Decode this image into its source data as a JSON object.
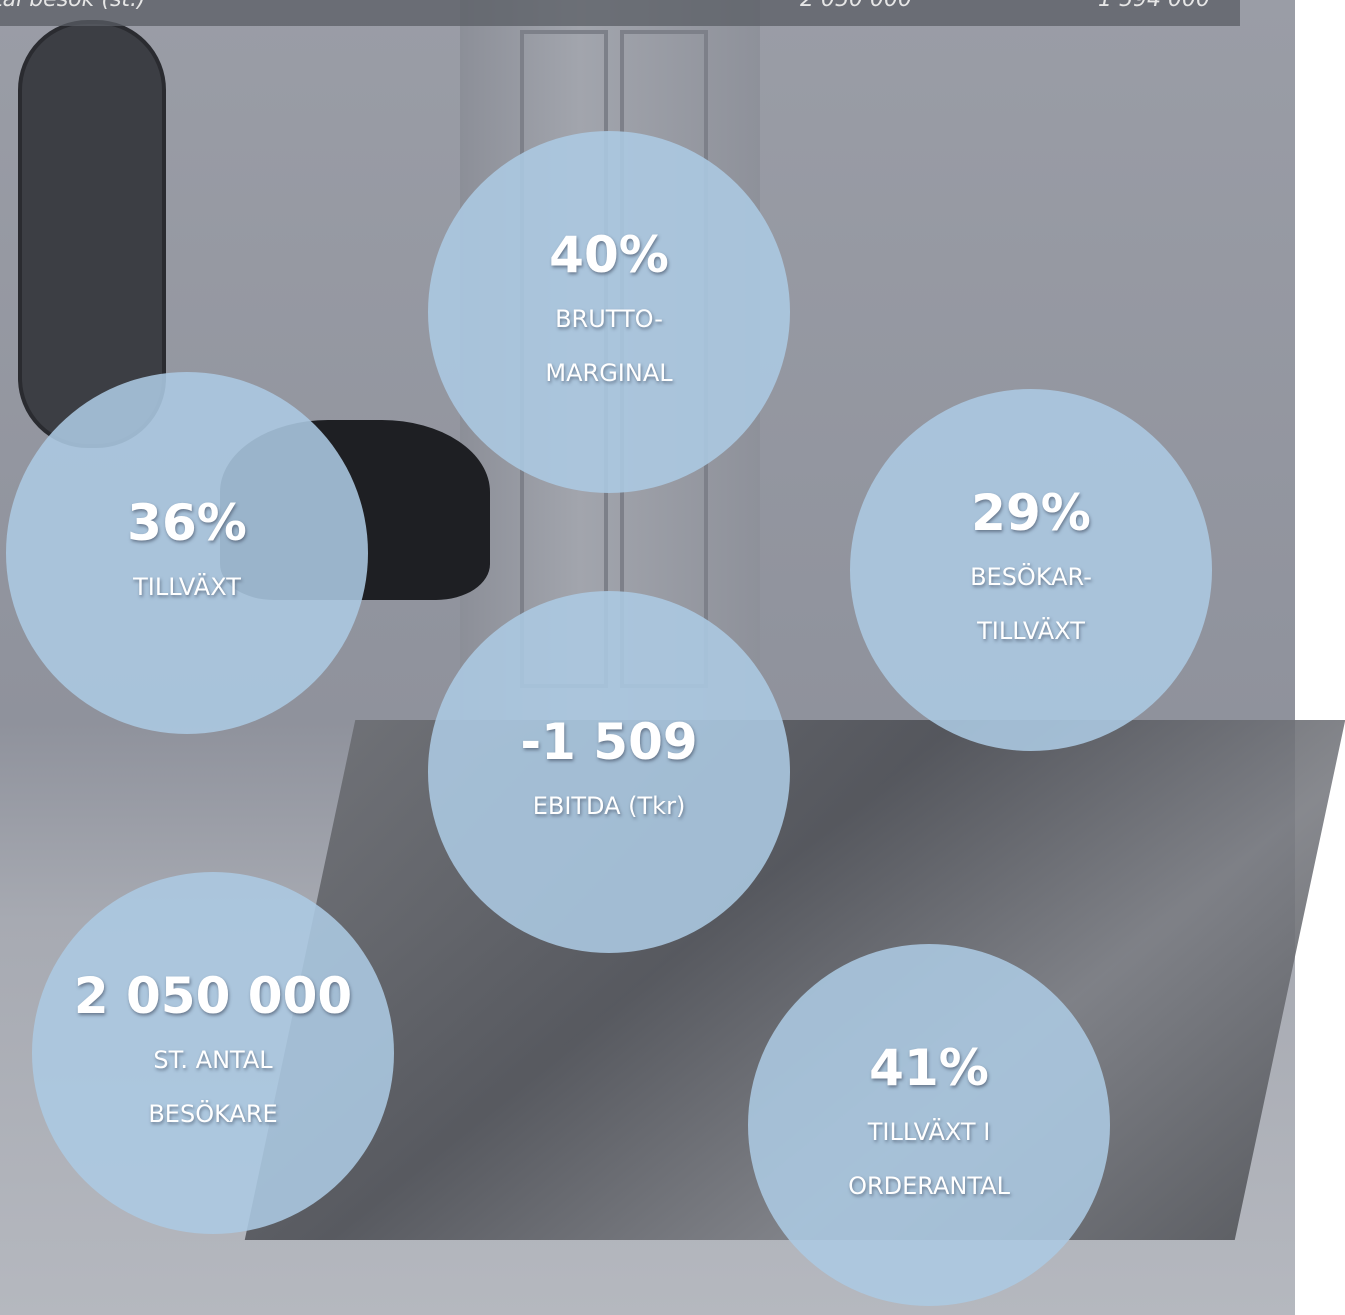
{
  "top_bar": {
    "label": "tal besök (st.)",
    "values": [
      "2 050 000",
      "1 594 000"
    ]
  },
  "stats": [
    {
      "value": "40%",
      "label_lines": [
        "BRUTTO-",
        "MARGINAL"
      ]
    },
    {
      "value": "36%",
      "label_lines": [
        "TILLVÄXT"
      ]
    },
    {
      "value": "29%",
      "label_lines": [
        "BESÖKAR-",
        "TILLVÄXT"
      ]
    },
    {
      "value": "-1 509",
      "label_lines": [
        "EBITDA (Tkr)"
      ]
    },
    {
      "value": "2 050 000",
      "label_lines": [
        "ST. ANTAL",
        "BESÖKARE"
      ]
    },
    {
      "value": "41%",
      "label_lines": [
        "TILLVÄXT I",
        "ORDERANTAL"
      ]
    }
  ]
}
